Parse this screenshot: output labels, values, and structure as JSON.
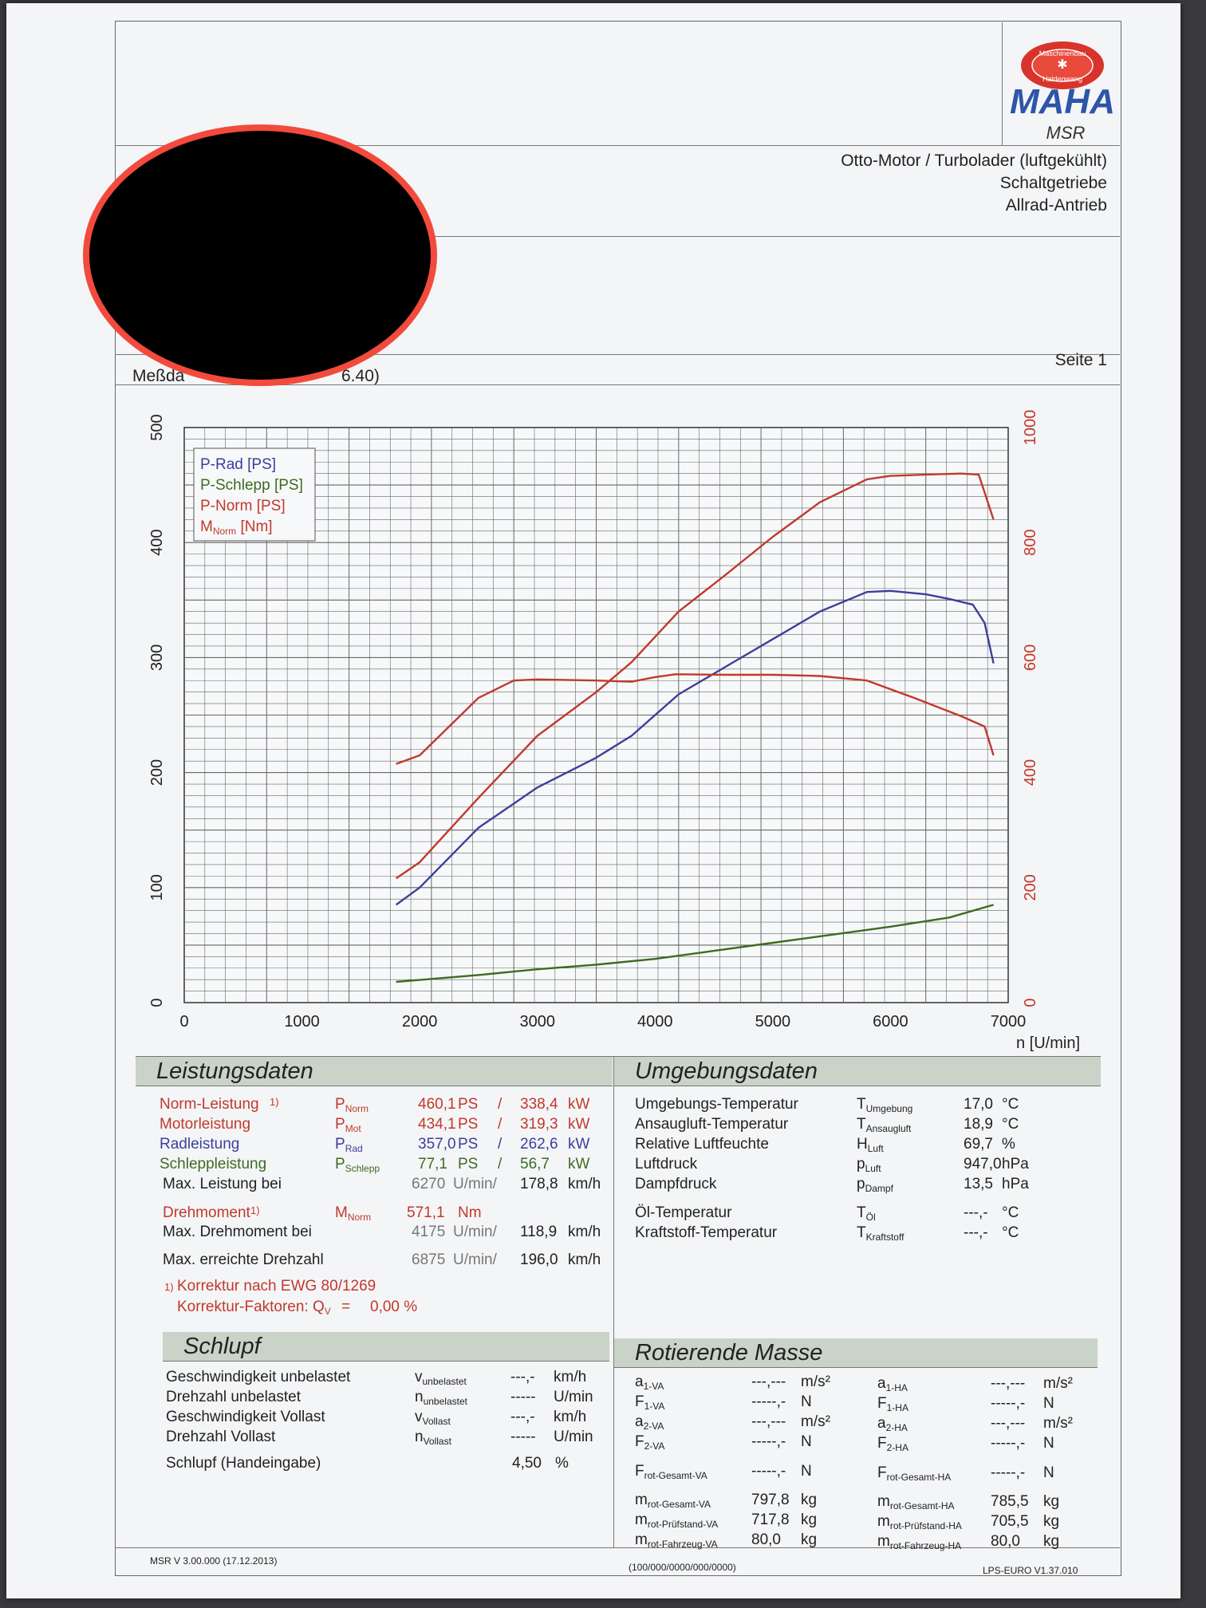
{
  "header": {
    "msr": "MSR",
    "logo_text": "MAHA",
    "logo_ring_top": "Maschinenbau",
    "logo_ring_bottom": "Haldenwang",
    "engine_line1": "Otto-Motor / Turbolader (luftgekühlt)",
    "engine_line2": "Schaltgetriebe",
    "engine_line3": "Allrad-Antrieb",
    "meas_left": "Meßda",
    "meas_right": "6.40)",
    "page": "Seite 1"
  },
  "chart_data": {
    "type": "line",
    "xlabel": "n [U/min]",
    "xlim": [
      0,
      7000
    ],
    "ylim_left": [
      0,
      500
    ],
    "ylim_right": [
      0,
      1000
    ],
    "x_ticks": [
      "0",
      "1000",
      "2000",
      "3000",
      "4000",
      "5000",
      "6000",
      "7000"
    ],
    "y_ticks_left": [
      "0",
      "100",
      "200",
      "300",
      "400",
      "500"
    ],
    "y_ticks_right": [
      "0",
      "200",
      "400",
      "600",
      "800",
      "1000"
    ],
    "grid": true,
    "legend_position": "top-left",
    "legend": [
      {
        "label": "P-Rad [PS]",
        "color": "#3b3f9a"
      },
      {
        "label": "P-Schlepp [PS]",
        "color": "#3d6b22"
      },
      {
        "label": "P-Norm [PS]",
        "color": "#c0392b"
      },
      {
        "label": "M",
        "sub": "Norm",
        "unit": " [Nm]",
        "color": "#c0392b"
      }
    ],
    "series": [
      {
        "name": "P-Rad [PS]",
        "axis": "left",
        "color": "#3b3f9a",
        "x": [
          1800,
          2000,
          2500,
          3000,
          3500,
          3800,
          4200,
          4600,
          5000,
          5400,
          5800,
          6000,
          6300,
          6500,
          6700,
          6800,
          6875
        ],
        "y": [
          85,
          100,
          152,
          187,
          213,
          232,
          268,
          292,
          316,
          340,
          357,
          358,
          355,
          351,
          346,
          330,
          295
        ]
      },
      {
        "name": "P-Schlepp [PS]",
        "axis": "left",
        "color": "#3d6b22",
        "x": [
          1800,
          2500,
          3000,
          3500,
          4000,
          4500,
          5000,
          5500,
          6000,
          6500,
          6875
        ],
        "y": [
          18,
          24,
          29,
          33,
          38,
          45,
          52,
          59,
          66,
          74,
          85
        ]
      },
      {
        "name": "P-Norm [PS]",
        "axis": "left",
        "color": "#c0392b",
        "x": [
          1800,
          2000,
          2500,
          3000,
          3500,
          3800,
          4200,
          4600,
          5000,
          5400,
          5800,
          6000,
          6300,
          6600,
          6750,
          6875
        ],
        "y": [
          108,
          122,
          178,
          232,
          270,
          296,
          340,
          372,
          405,
          435,
          455,
          458,
          459,
          460,
          459,
          420
        ]
      },
      {
        "name": "M [Nm]",
        "axis": "right",
        "color": "#c0392b",
        "x": [
          1800,
          2000,
          2500,
          2800,
          3000,
          3500,
          3800,
          4000,
          4175,
          4600,
          5000,
          5400,
          5800,
          6200,
          6600,
          6800,
          6875
        ],
        "y": [
          415,
          430,
          530,
          560,
          562,
          560,
          558,
          566,
          571,
          570,
          570,
          568,
          560,
          530,
          498,
          480,
          430
        ]
      }
    ]
  },
  "leistung": {
    "title": "Leistungsdaten",
    "rows": [
      {
        "label": "Norm-Leistung",
        "foot": "1)",
        "sym": "P",
        "sub": "Norm",
        "v1": "460,1",
        "u1": "PS",
        "sep": "/",
        "v2": "338,4",
        "u2": "kW",
        "color": "red"
      },
      {
        "label": "Motorleistung",
        "foot": "",
        "sym": "P",
        "sub": "Mot",
        "v1": "434,1",
        "u1": "PS",
        "sep": "/",
        "v2": "319,3",
        "u2": "kW",
        "color": "red"
      },
      {
        "label": "Radleistung",
        "foot": "",
        "sym": "P",
        "sub": "Rad",
        "v1": "357,0",
        "u1": "PS",
        "sep": "/",
        "v2": "262,6",
        "u2": "kW",
        "color": "blue"
      },
      {
        "label": "Schleppleistung",
        "foot": "",
        "sym": "P",
        "sub": "Schlepp",
        "v1": "77,1",
        "u1": "PS",
        "sep": "/",
        "v2": "56,7",
        "u2": "kW",
        "color": "green"
      }
    ],
    "max_power_label": "Max. Leistung bei",
    "max_power_rpm": "6270",
    "rpm_unit": "U/min/",
    "max_power_speed": "178,8",
    "speed_unit": "km/h",
    "torque_label": "Drehmoment",
    "torque_foot": "1)",
    "torque_sym": "M",
    "torque_sub": "Norm",
    "torque_value": "571,1",
    "torque_unit": "Nm",
    "max_torque_label": "Max. Drehmoment bei",
    "max_torque_rpm": "4175",
    "max_torque_speed": "118,9",
    "max_rpm_label": "Max. erreichte Drehzahl",
    "max_rpm": "6875",
    "max_rpm_speed": "196,0",
    "corr_line1_foot": "1)",
    "corr_line1": "Korrektur nach EWG 80/1269",
    "corr_line2": "Korrektur-Faktoren: Q",
    "corr_sub": "V",
    "corr_eq": "=",
    "corr_value": "0,00 %"
  },
  "umgebung": {
    "title": "Umgebungsdaten",
    "rows": [
      {
        "label": "Umgebungs-Temperatur",
        "sym": "T",
        "sub": "Umgebung",
        "value": "17,0",
        "unit": "°C"
      },
      {
        "label": "Ansaugluft-Temperatur",
        "sym": "T",
        "sub": "Ansaugluft",
        "value": "18,9",
        "unit": "°C"
      },
      {
        "label": "Relative Luftfeuchte",
        "sym": "H",
        "sub": "Luft",
        "value": "69,7",
        "unit": "%"
      },
      {
        "label": "Luftdruck",
        "sym": "p",
        "sub": "Luft",
        "value": "947,0",
        "unit": "hPa"
      },
      {
        "label": "Dampfdruck",
        "sym": "p",
        "sub": "Dampf",
        "value": "13,5",
        "unit": "hPa"
      },
      {
        "label": "Öl-Temperatur",
        "sym": "T",
        "sub": "Öl",
        "value": "---,-",
        "unit": "°C"
      },
      {
        "label": "Kraftstoff-Temperatur",
        "sym": "T",
        "sub": "Kraftstoff",
        "value": "---,-",
        "unit": "°C"
      }
    ]
  },
  "schlupf": {
    "title": "Schlupf",
    "rows": [
      {
        "label": "Geschwindigkeit unbelastet",
        "sym": "v",
        "sub": "unbelastet",
        "value": "---,-",
        "unit": "km/h"
      },
      {
        "label": "Drehzahl unbelastet",
        "sym": "n",
        "sub": "unbelastet",
        "value": "-----",
        "unit": "U/min"
      },
      {
        "label": "Geschwindigkeit Vollast",
        "sym": "v",
        "sub": "Vollast",
        "value": "---,-",
        "unit": "km/h"
      },
      {
        "label": "Drehzahl Vollast",
        "sym": "n",
        "sub": "Vollast",
        "value": "-----",
        "unit": "U/min"
      }
    ],
    "manual_label": "Schlupf (Handeingabe)",
    "manual_value": "4,50",
    "manual_unit": "%"
  },
  "masse": {
    "title": "Rotierende Masse",
    "va": [
      {
        "sym": "a",
        "sub": "1-VA",
        "value": "---,---",
        "unit": "m/s²"
      },
      {
        "sym": "F",
        "sub": "1-VA",
        "value": "-----,-",
        "unit": "N"
      },
      {
        "sym": "a",
        "sub": "2-VA",
        "value": "---,---",
        "unit": "m/s²"
      },
      {
        "sym": "F",
        "sub": "2-VA",
        "value": "-----,-",
        "unit": "N"
      },
      {
        "sym": "F",
        "sub": "rot-Gesamt-VA",
        "value": "-----,-",
        "unit": "N"
      },
      {
        "sym": "m",
        "sub": "rot-Gesamt-VA",
        "value": "797,8",
        "unit": "kg"
      },
      {
        "sym": "m",
        "sub": "rot-Prüfstand-VA",
        "value": "717,8",
        "unit": "kg"
      },
      {
        "sym": "m",
        "sub": "rot-Fahrzeug-VA",
        "value": "80,0",
        "unit": "kg"
      }
    ],
    "ha": [
      {
        "sym": "a",
        "sub": "1-HA",
        "value": "---,---",
        "unit": "m/s²"
      },
      {
        "sym": "F",
        "sub": "1-HA",
        "value": "-----,-",
        "unit": "N"
      },
      {
        "sym": "a",
        "sub": "2-HA",
        "value": "---,---",
        "unit": "m/s²"
      },
      {
        "sym": "F",
        "sub": "2-HA",
        "value": "-----,-",
        "unit": "N"
      },
      {
        "sym": "F",
        "sub": "rot-Gesamt-HA",
        "value": "-----,-",
        "unit": "N"
      },
      {
        "sym": "m",
        "sub": "rot-Gesamt-HA",
        "value": "785,5",
        "unit": "kg"
      },
      {
        "sym": "m",
        "sub": "rot-Prüfstand-HA",
        "value": "705,5",
        "unit": "kg"
      },
      {
        "sym": "m",
        "sub": "rot-Fahrzeug-HA",
        "value": "80,0",
        "unit": "kg"
      }
    ]
  },
  "footer": {
    "version": "MSR V 3.00.000 (17.12.2013)",
    "code": "(100/000/0000/000/0000)",
    "lps": "LPS-EURO V1.37.010"
  },
  "colors": {
    "red": "#c0392b",
    "blue": "#3b3f9a",
    "green": "#3d6b22",
    "section_bg": "#c9d3c7",
    "redaction_ring": "#f24a3c"
  }
}
